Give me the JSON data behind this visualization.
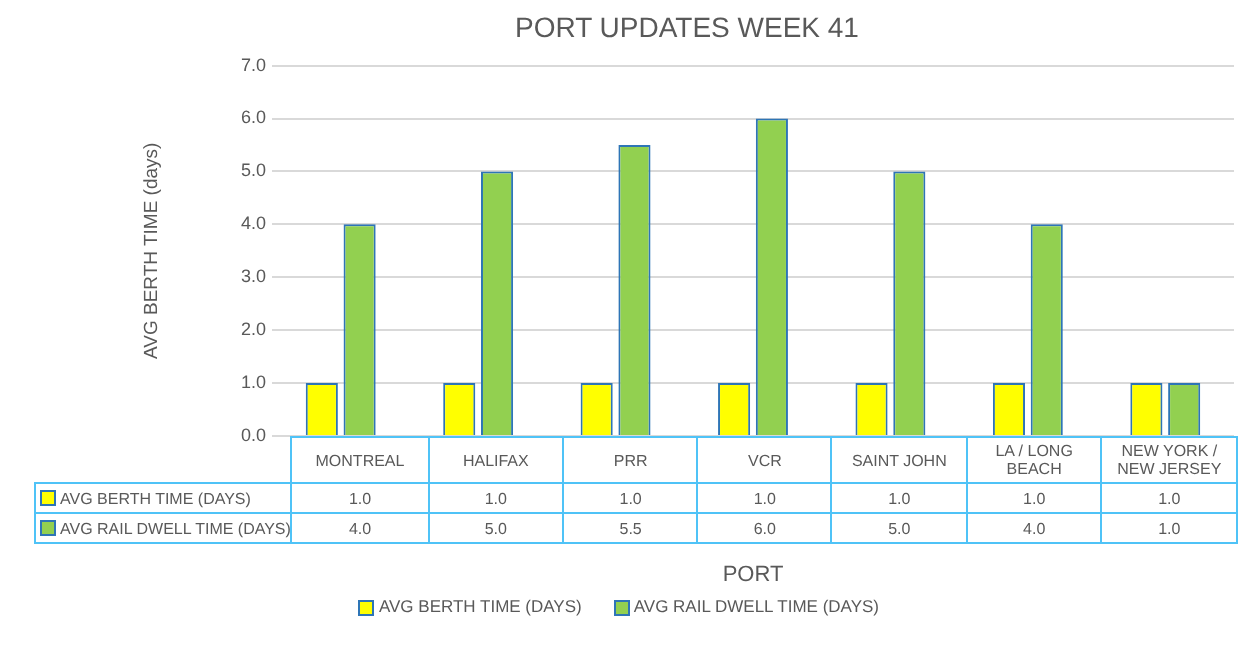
{
  "chart_data": {
    "type": "bar",
    "title": "PORT UPDATES WEEK 41",
    "xlabel": "PORT",
    "ylabel": "AVG BERTH TIME (days)",
    "categories": [
      "MONTREAL",
      "HALIFAX",
      "PRR",
      "VCR",
      "SAINT JOHN",
      "LA / LONG BEACH",
      "NEW YORK / NEW JERSEY"
    ],
    "series": [
      {
        "name": "AVG BERTH TIME (DAYS)",
        "color": "#ffff00",
        "values": [
          1.0,
          1.0,
          1.0,
          1.0,
          1.0,
          1.0,
          1.0
        ],
        "value_labels": [
          "1.0",
          "1.0",
          "1.0",
          "1.0",
          "1.0",
          "1.0",
          "1.0"
        ]
      },
      {
        "name": "AVG RAIL DWELL TIME (DAYS)",
        "color": "#92d050",
        "values": [
          4.0,
          5.0,
          5.5,
          6.0,
          5.0,
          4.0,
          1.0
        ],
        "value_labels": [
          "4.0",
          "5.0",
          "5.5",
          "6.0",
          "5.0",
          "4.0",
          "1.0"
        ]
      }
    ],
    "ylim": [
      0,
      7
    ],
    "yticks": [
      {
        "value": 0,
        "label": "0.0"
      },
      {
        "value": 1,
        "label": "1.0"
      },
      {
        "value": 2,
        "label": "2.0"
      },
      {
        "value": 3,
        "label": "3.0"
      },
      {
        "value": 4,
        "label": "4.0"
      },
      {
        "value": 5,
        "label": "5.0"
      },
      {
        "value": 6,
        "label": "6.0"
      },
      {
        "value": 7,
        "label": "7.0"
      }
    ],
    "grid": "y",
    "legend": "bottom"
  }
}
